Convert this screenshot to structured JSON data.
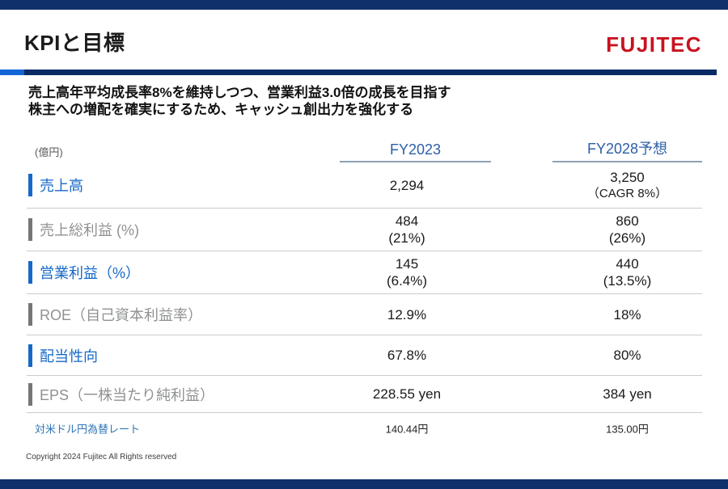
{
  "page": {
    "title": "KPIと目標",
    "logo": "FUJITEC",
    "subtitle_line1": "売上高年平均成長率8%を維持しつつ、営業利益3.0倍の成長を目指す",
    "subtitle_line2": "株主への増配を確実にするため、キャッシュ創出力を強化する",
    "copyright": "Copyright 2024 Fujitec All Rights reserved"
  },
  "colors": {
    "navy_bar": "#10306b",
    "rule_navy": "#0a2a66",
    "rule_light_blue": "#1465d6",
    "label_blue": "#1568c8",
    "label_gray": "#8f9193",
    "header_blue": "#2d5fa7",
    "logo_red": "#c9121f"
  },
  "table": {
    "unit_label": "(億円)",
    "col1_header": "FY2023",
    "col2_header": "FY2028予想",
    "rows": [
      {
        "label": "売上高",
        "accent": "blue",
        "fy2023": "2,294",
        "fy2028": "3,250",
        "fy2028_sub": "（CAGR 8%）"
      },
      {
        "label": "売上総利益 (%)",
        "accent": "gray",
        "fy2023": "484",
        "fy2023_sub": "(21%)",
        "fy2028": "860",
        "fy2028_sub": "(26%)"
      },
      {
        "label": "営業利益（%）",
        "accent": "blue",
        "fy2023": "145",
        "fy2023_sub": "(6.4%)",
        "fy2028": "440",
        "fy2028_sub": "(13.5%)"
      },
      {
        "label": "ROE（自己資本利益率）",
        "accent": "gray",
        "fy2023": "12.9%",
        "fy2028": "18%"
      },
      {
        "label": "配当性向",
        "accent": "blue",
        "fy2023": "67.8%",
        "fy2028": "80%"
      },
      {
        "label": "EPS（一株当たり純利益）",
        "accent": "gray",
        "fy2023": "228.55 yen",
        "fy2028": "384 yen"
      }
    ],
    "footnote_row": {
      "label": "対米ドル円為替レート",
      "fy2023": "140.44円",
      "fy2028": "135.00円"
    }
  },
  "chart_data": {
    "type": "table",
    "title": "KPIと目標",
    "columns": [
      "(億円)",
      "FY2023",
      "FY2028予想"
    ],
    "rows": [
      [
        "売上高",
        "2,294",
        "3,250（CAGR 8%）"
      ],
      [
        "売上総利益 (%)",
        "484 (21%)",
        "860 (26%)"
      ],
      [
        "営業利益（%）",
        "145 (6.4%)",
        "440 (13.5%)"
      ],
      [
        "ROE（自己資本利益率）",
        "12.9%",
        "18%"
      ],
      [
        "配当性向",
        "67.8%",
        "80%"
      ],
      [
        "EPS（一株当たり純利益）",
        "228.55 yen",
        "384 yen"
      ],
      [
        "対米ドル円為替レート",
        "140.44円",
        "135.00円"
      ]
    ]
  }
}
